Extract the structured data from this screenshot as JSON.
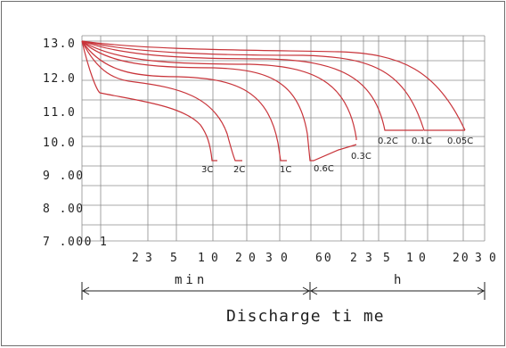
{
  "chart_data": {
    "type": "line",
    "title": "",
    "xlabel": "Discharge ti me",
    "ylabel": "",
    "ylim": [
      7.0,
      13.2
    ],
    "grid": true,
    "y_tick_labels": [
      "13.0",
      "12.0",
      "11.0",
      "10.0",
      "9 .00",
      "8 .00",
      "7 .000"
    ],
    "x_tick_labels": [
      "1",
      "2",
      "3",
      "5",
      "1",
      "0",
      "2",
      "0",
      "3",
      "0",
      "60",
      "2",
      "3",
      "5",
      "1",
      "0",
      "20",
      "3",
      "0"
    ],
    "unit_labels": [
      "min",
      "h"
    ],
    "series": [
      {
        "name": "3C",
        "cutoff": 9.6
      },
      {
        "name": "2C",
        "cutoff": 9.6
      },
      {
        "name": "1C",
        "cutoff": 9.6
      },
      {
        "name": "0.6C",
        "cutoff": 9.6
      },
      {
        "name": "0.3C",
        "cutoff": 10.0
      },
      {
        "name": "0.2C",
        "cutoff": 10.5
      },
      {
        "name": "0.1C",
        "cutoff": 10.5
      },
      {
        "name": "0.05C",
        "cutoff": 10.5
      }
    ]
  }
}
